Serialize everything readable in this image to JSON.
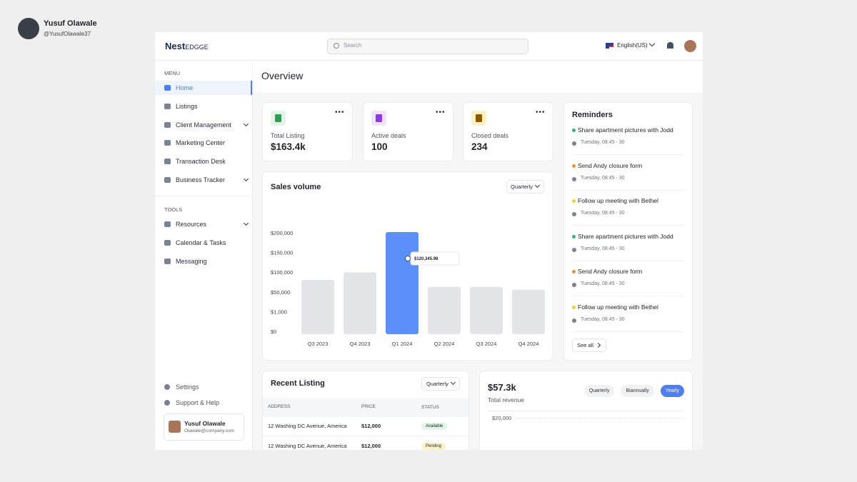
{
  "author": {
    "name": "Yusuf Olawale",
    "handle": "@YusufOlawale37"
  },
  "header": {
    "logo": "Nest",
    "logo_suffix": "EDGGE",
    "search": "Search",
    "language": "English(US)"
  },
  "sidebar": {
    "menu_title": "MENU",
    "menu": [
      {
        "label": "Home",
        "active": true
      },
      {
        "label": "Listings"
      },
      {
        "label": "Client Management",
        "submenu": true
      },
      {
        "label": "Marketing Center"
      },
      {
        "label": "Transaction Desk"
      },
      {
        "label": "Business Tracker",
        "submenu": true
      }
    ],
    "tools_title": "TOOLS",
    "tools": [
      {
        "label": "Resources",
        "submenu": true
      },
      {
        "label": "Calendar & Tasks"
      },
      {
        "label": "Messaging"
      }
    ],
    "footer": [
      "Settings",
      "Support & Help"
    ],
    "user": {
      "name": "Yusuf Olawale",
      "email": "Olawale@company.com"
    }
  },
  "title": "Overview",
  "stats": [
    {
      "label": "Total Listing",
      "value": "$163.4k",
      "color": "#2e9d57",
      "bg": "#e3f5e8"
    },
    {
      "label": "Active deals",
      "value": "100",
      "color": "#8b3fd8",
      "bg": "#efe6fb"
    },
    {
      "label": "Closed deals",
      "value": "234",
      "color": "#8a5a00",
      "bg": "#fdf0c4"
    }
  ],
  "chart_data": {
    "type": "bar",
    "title": "Sales volume",
    "period": "Quarterly",
    "categories": [
      "Q3 2023",
      "Q4 2023",
      "Q1 2024",
      "Q2 2024",
      "Q3 2024",
      "Q4 2024"
    ],
    "values": [
      88000,
      107000,
      209000,
      70000,
      70000,
      63000
    ],
    "colors": [
      "#e4e5e9",
      "#e4e5e9",
      "#5b8ff9",
      "#e4e5e9",
      "#e4e5e9",
      "#e4e5e9"
    ],
    "ylim": [
      0,
      200000
    ],
    "yticks": [
      {
        "value": 0,
        "label": "$0"
      },
      {
        "value": 1000,
        "label": "$1,000"
      },
      {
        "value": 50000,
        "label": "$50,000"
      },
      {
        "value": 100000,
        "label": "$100,000"
      },
      {
        "value": 150000,
        "label": "$150,000"
      },
      {
        "value": 200000,
        "label": "$200,000"
      }
    ],
    "grid": false,
    "tooltip": "$120,345.98"
  },
  "reminders": {
    "title": "Reminders",
    "see_all": "See all",
    "items": [
      {
        "text": "Share apartment pictures with Jodd",
        "time": "Tuesday, 08:45 - 30",
        "color": "#35b36a"
      },
      {
        "text": "Send Andy closure form",
        "time": "Tuesday, 08:45 - 30",
        "color": "#f0913a"
      },
      {
        "text": "Follow up meeting with Bethel",
        "time": "Tuesday, 08:45 - 30",
        "color": "#f2cf2a"
      },
      {
        "text": "Share apartment pictures with Jodd",
        "time": "Tuesday, 08:45 - 30",
        "color": "#35b36a"
      },
      {
        "text": "Send Andy closure form",
        "time": "Tuesday, 08:45 - 30",
        "color": "#f0913a"
      },
      {
        "text": "Follow up meeting with Bethel",
        "time": "Tuesday, 08:45 - 30",
        "color": "#f2cf2a"
      }
    ]
  },
  "recent_listing": {
    "title": "Recent Listing",
    "period": "Quarterly",
    "columns": [
      "ADDRESS",
      "PRICE",
      "STATUS"
    ],
    "rows": [
      {
        "address": "12 Washing DC Avenue, America",
        "price": "$12,000",
        "status": "Available",
        "color": "#e2f5e7"
      },
      {
        "address": "12 Washing DC Avenue, America",
        "price": "$12,000",
        "status": "Pending",
        "color": "#fcf3c8"
      }
    ]
  },
  "revenue": {
    "value": "$57.3k",
    "label": "Total revenue",
    "tick": "$20,000",
    "tabs": [
      {
        "label": "Quarterly"
      },
      {
        "label": "Biannually"
      },
      {
        "label": "Yearly",
        "active": true
      }
    ]
  }
}
